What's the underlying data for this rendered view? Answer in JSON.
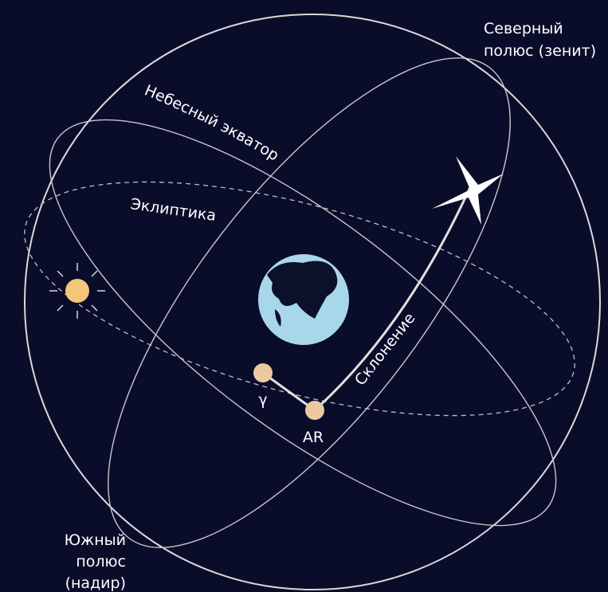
{
  "labels": {
    "north_pole": [
      "Северный",
      "полюс (зенит)"
    ],
    "celestial_equator": "Небесный экватор",
    "ecliptic": "Эклиптика",
    "declination": "Склонение",
    "south_pole": [
      "Южный",
      "полюс",
      "(надир)"
    ],
    "vernal_equinox": "γ",
    "right_ascension": "AR"
  }
}
